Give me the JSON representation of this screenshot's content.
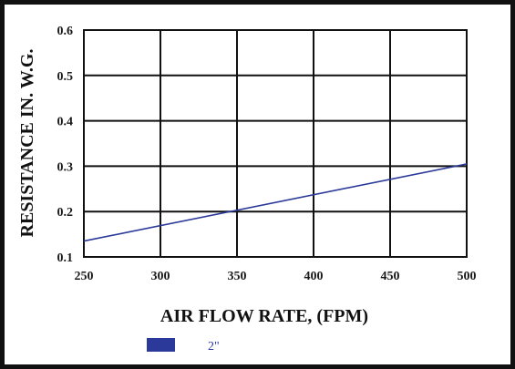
{
  "chart_data": {
    "type": "line",
    "xlabel": "AIR FLOW RATE, (FPM)",
    "ylabel": "RESISTANCE IN. W.G.",
    "xlim": [
      250,
      500
    ],
    "ylim": [
      0.1,
      0.6
    ],
    "x_ticks": [
      250,
      300,
      350,
      400,
      450,
      500
    ],
    "x_tick_labels": [
      "250",
      "300",
      "350",
      "400",
      "450",
      "500"
    ],
    "y_ticks": [
      0.1,
      0.2,
      0.3,
      0.4,
      0.5,
      0.6
    ],
    "y_tick_labels": [
      "0.1",
      "0.2",
      "0.3",
      "0.4",
      "0.5",
      "0.6"
    ],
    "grid": true,
    "legend_position": "bottom-center",
    "series": [
      {
        "name": "2\"",
        "color": "#2b3a9a",
        "x": [
          250,
          500
        ],
        "y": [
          0.135,
          0.305
        ]
      }
    ]
  }
}
